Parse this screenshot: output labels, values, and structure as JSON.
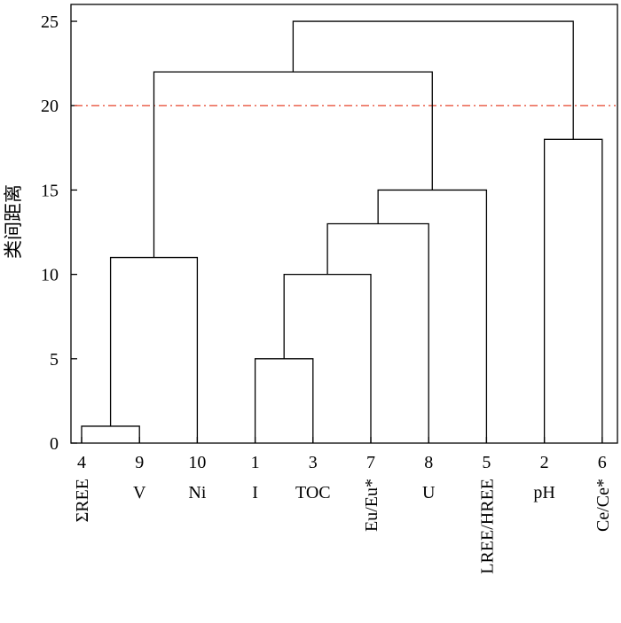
{
  "chart_data": {
    "type": "dendrogram",
    "title": "",
    "xlabel": "",
    "ylabel": "类间距离",
    "ylim": [
      0,
      26
    ],
    "yticks": [
      0,
      5,
      10,
      15,
      20,
      25
    ],
    "grid": false,
    "threshold": {
      "value": 20,
      "color": "#e8432b"
    },
    "leaves": [
      {
        "id": "4",
        "name": "ΣREE",
        "vertical": true
      },
      {
        "id": "9",
        "name": "V",
        "vertical": false
      },
      {
        "id": "10",
        "name": "Ni",
        "vertical": false
      },
      {
        "id": "1",
        "name": "I",
        "vertical": false
      },
      {
        "id": "3",
        "name": "TOC",
        "vertical": false
      },
      {
        "id": "7",
        "name": "Eu/Eu*",
        "vertical": true
      },
      {
        "id": "8",
        "name": "U",
        "vertical": false
      },
      {
        "id": "5",
        "name": "LREE/HREE",
        "vertical": true
      },
      {
        "id": "2",
        "name": "pH",
        "vertical": false
      },
      {
        "id": "6",
        "name": "Ce/Ce*",
        "vertical": true
      }
    ],
    "merges": [
      {
        "a": "4",
        "b": "9",
        "height": 1,
        "id": "m1"
      },
      {
        "a": "m1",
        "b": "10",
        "height": 11,
        "id": "m2"
      },
      {
        "a": "1",
        "b": "3",
        "height": 5,
        "id": "m3"
      },
      {
        "a": "m3",
        "b": "7",
        "height": 10,
        "id": "m4"
      },
      {
        "a": "m4",
        "b": "8",
        "height": 13,
        "id": "m5"
      },
      {
        "a": "m5",
        "b": "5",
        "height": 15,
        "id": "m6"
      },
      {
        "a": "2",
        "b": "6",
        "height": 18,
        "id": "m7"
      },
      {
        "a": "m2",
        "b": "m6",
        "height": 22,
        "id": "m8"
      },
      {
        "a": "m8",
        "b": "m7",
        "height": 25,
        "id": "m9"
      }
    ]
  }
}
